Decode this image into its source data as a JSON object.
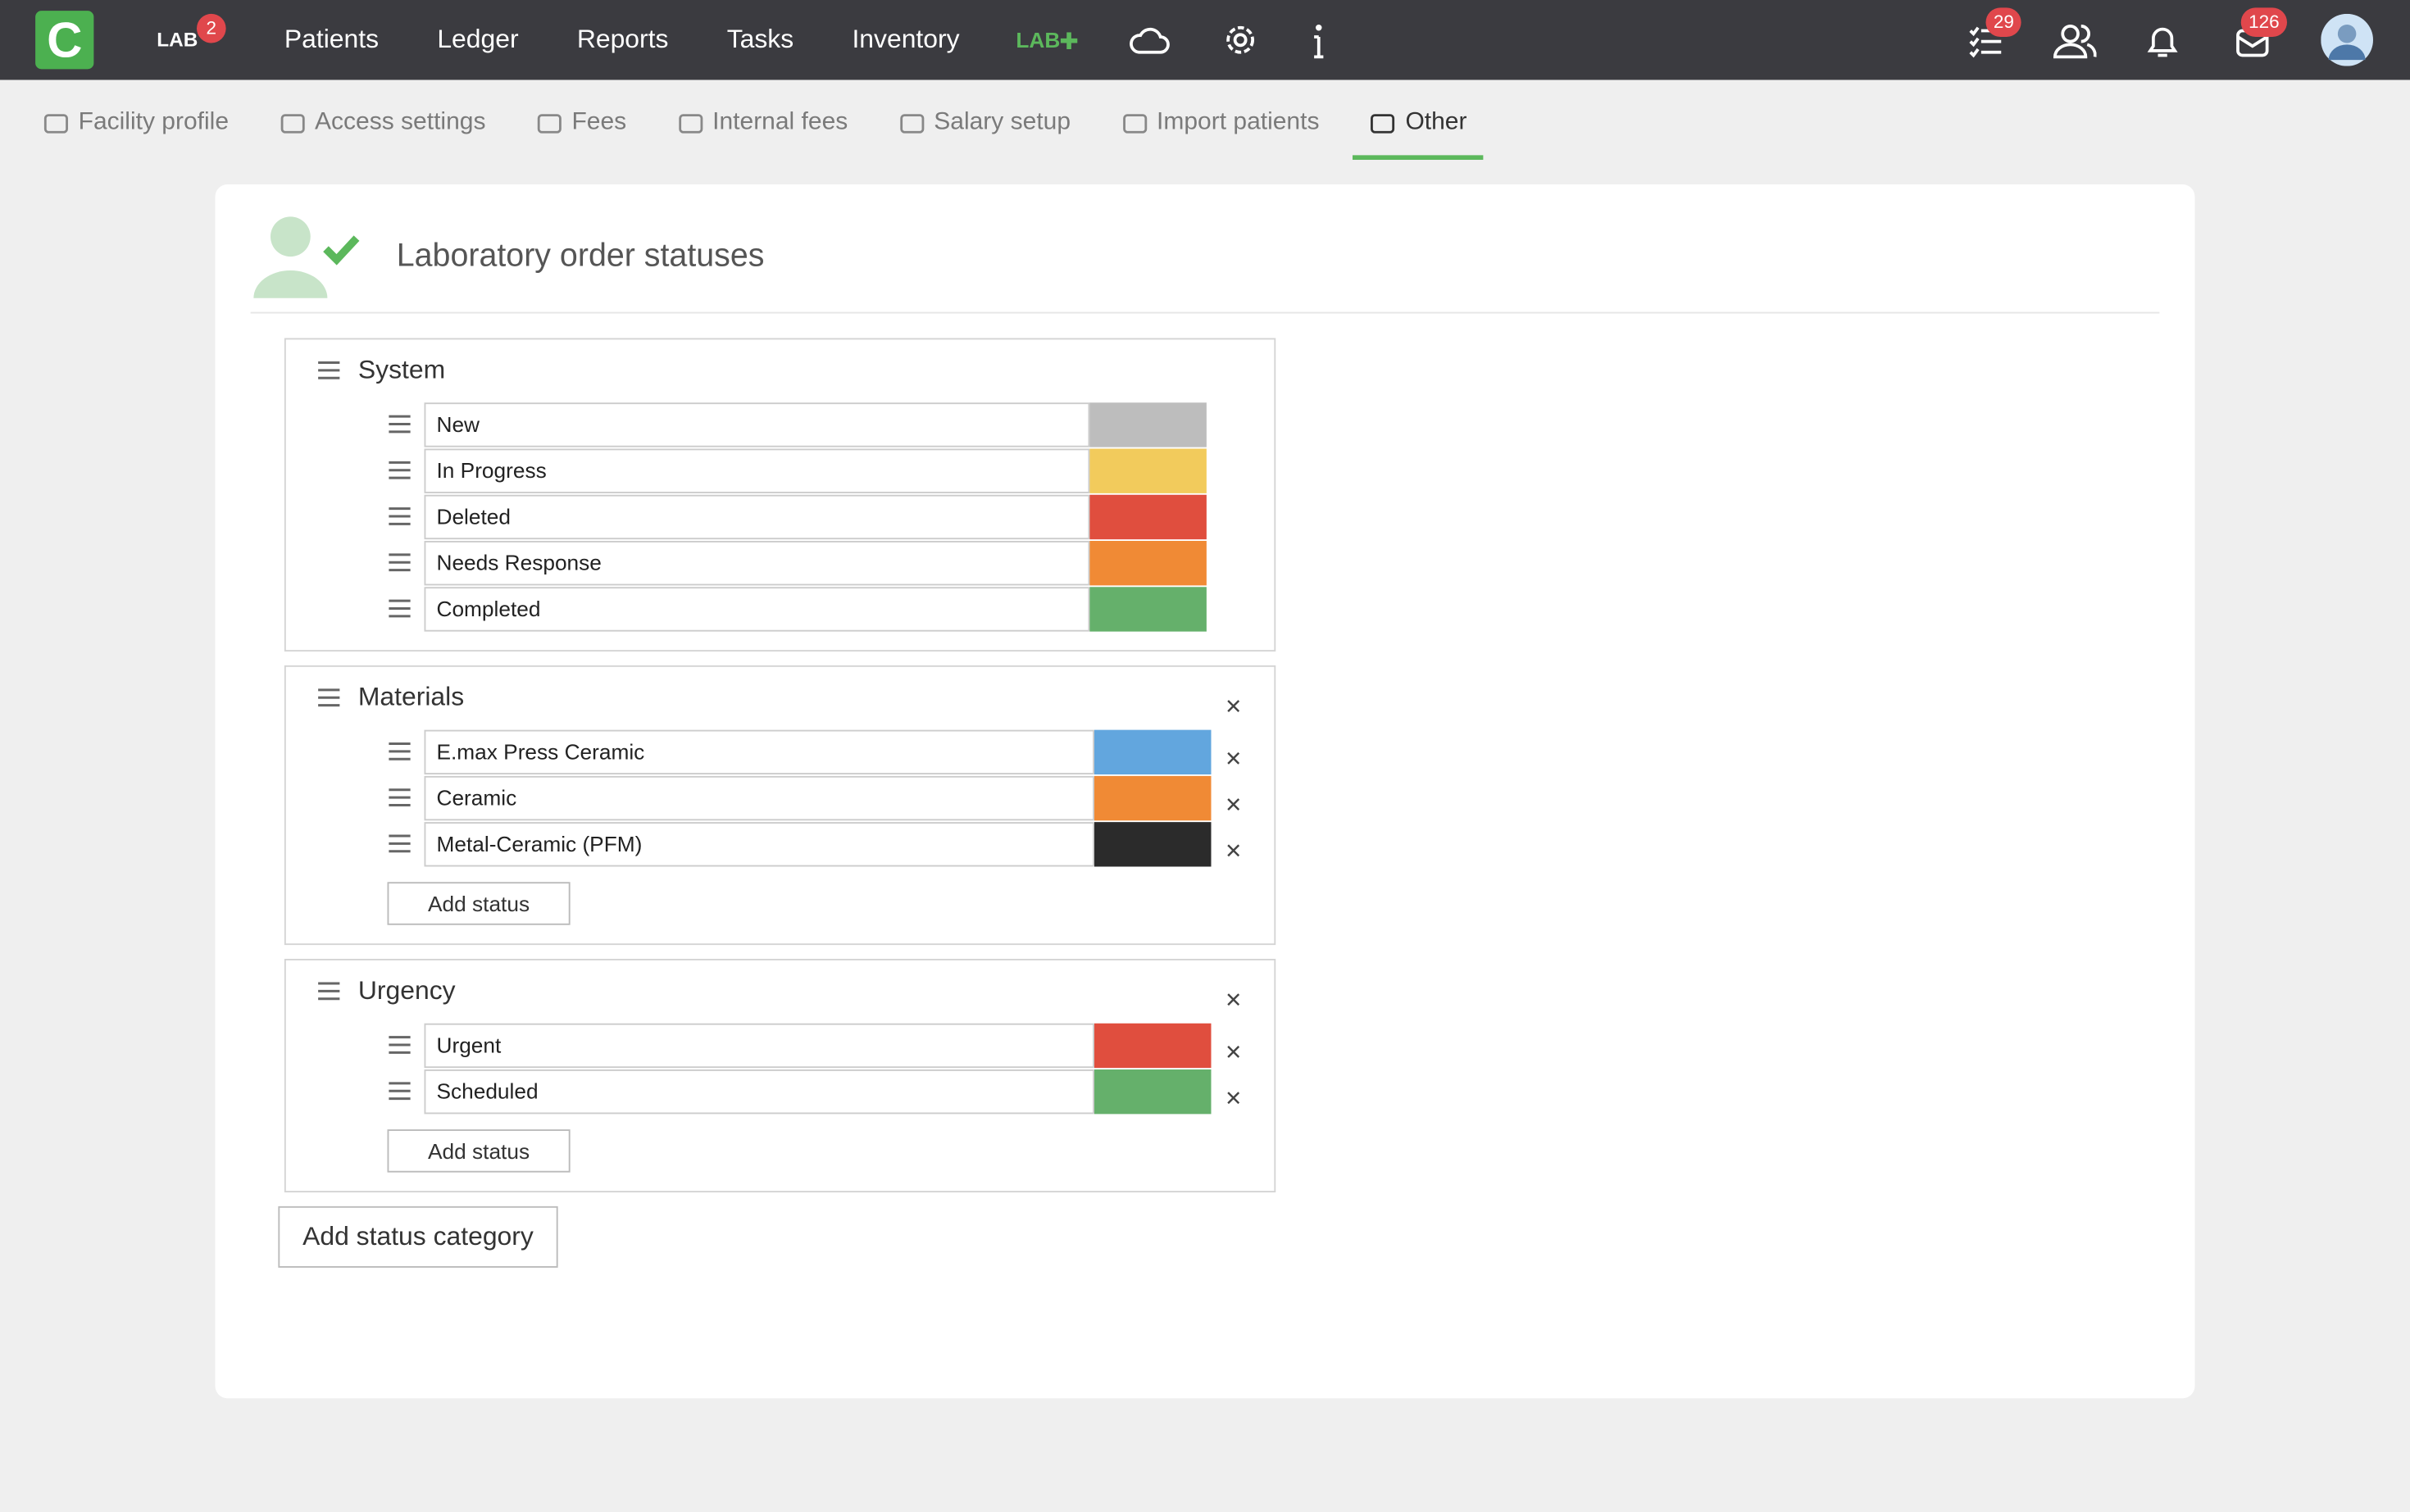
{
  "nav": {
    "logo": "C",
    "lab": "LAB",
    "lab_badge": "2",
    "items": [
      "Patients",
      "Ledger",
      "Reports",
      "Tasks",
      "Inventory"
    ],
    "lab_plus": "LAB",
    "tasks_badge": "29",
    "mail_badge": "126"
  },
  "tabs": {
    "items": [
      "Facility profile",
      "Access settings",
      "Fees",
      "Internal fees",
      "Salary setup",
      "Import patients",
      "Other"
    ],
    "active": 6
  },
  "panel": {
    "title": "Laboratory order statuses",
    "add_status": "Add status",
    "add_category": "Add status category",
    "categories": [
      {
        "name": "System",
        "removable": false,
        "statuses": [
          {
            "label": "New",
            "color": "#bdbdbd"
          },
          {
            "label": "In Progress",
            "color": "#f2cb5c"
          },
          {
            "label": "Deleted",
            "color": "#e04e3e"
          },
          {
            "label": "Needs Response",
            "color": "#f08a35"
          },
          {
            "label": "Completed",
            "color": "#65b06b"
          }
        ]
      },
      {
        "name": "Materials",
        "removable": true,
        "statuses": [
          {
            "label": "E.max Press Ceramic",
            "color": "#62a6de"
          },
          {
            "label": "Ceramic",
            "color": "#f08a35"
          },
          {
            "label": "Metal-Ceramic (PFM)",
            "color": "#2b2b2b"
          }
        ]
      },
      {
        "name": "Urgency",
        "removable": true,
        "statuses": [
          {
            "label": "Urgent",
            "color": "#e04e3e"
          },
          {
            "label": "Scheduled",
            "color": "#65b06b"
          }
        ]
      }
    ]
  }
}
